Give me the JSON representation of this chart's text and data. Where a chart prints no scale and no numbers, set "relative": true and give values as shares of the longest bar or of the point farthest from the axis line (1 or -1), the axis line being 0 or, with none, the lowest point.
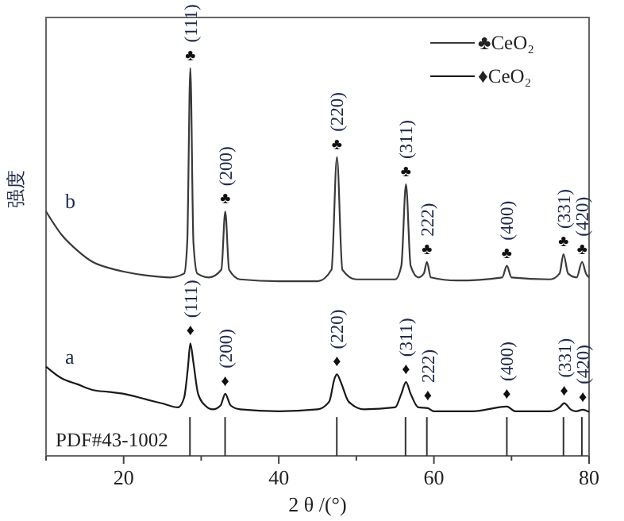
{
  "chart_data": {
    "type": "line",
    "relative": true,
    "xlabel": "2 θ /(°)",
    "ylabel": "强度",
    "xlim": [
      10,
      80
    ],
    "xticks": [
      {
        "value": 10,
        "label": null
      },
      20,
      {
        "value": 30,
        "label": null
      },
      40,
      {
        "value": 50,
        "label": null
      },
      60,
      {
        "value": 70,
        "label": null
      },
      80
    ],
    "tick_labels": "x",
    "legend": "top right",
    "grid": false,
    "marker": "none",
    "line_style": "solid",
    "series": [
      {
        "name": "♣CeO₂",
        "color": "#3a3a3a",
        "x": [
          10,
          12,
          14,
          16,
          18,
          20,
          23,
          26,
          27.8,
          28.2,
          28.6,
          29.0,
          29.5,
          31,
          32.6,
          33.1,
          33.6,
          35,
          40,
          45,
          46.8,
          47.5,
          48.2,
          50,
          55,
          55.8,
          56.4,
          57.0,
          58,
          58.7,
          59.1,
          59.6,
          63,
          68.8,
          69.4,
          70,
          75,
          76.2,
          76.7,
          77.3,
          78.4,
          79.1,
          79.6,
          80
        ],
        "values": [
          0.63,
          0.57,
          0.53,
          0.5,
          0.485,
          0.475,
          0.465,
          0.46,
          0.47,
          0.55,
          1.0,
          0.55,
          0.47,
          0.46,
          0.48,
          0.63,
          0.48,
          0.455,
          0.45,
          0.45,
          0.48,
          0.77,
          0.48,
          0.455,
          0.455,
          0.49,
          0.7,
          0.49,
          0.46,
          0.47,
          0.5,
          0.46,
          0.452,
          0.46,
          0.49,
          0.46,
          0.455,
          0.47,
          0.52,
          0.47,
          0.46,
          0.5,
          0.47,
          0.46
        ]
      },
      {
        "name": "♦CeO₂",
        "color": "#1a1a1a",
        "x": [
          10,
          12,
          14,
          16,
          18,
          20,
          23,
          25,
          27,
          27.8,
          28.3,
          28.6,
          29.0,
          29.6,
          30.5,
          31.5,
          32.5,
          33.1,
          33.8,
          35,
          40,
          45,
          46.5,
          47.2,
          47.5,
          48,
          49,
          51,
          55,
          55.8,
          56.4,
          57,
          58,
          59.2,
          60,
          65,
          69.4,
          70.5,
          75,
          76.2,
          76.8,
          77.6,
          78.3,
          79.2,
          80
        ],
        "values": [
          0.23,
          0.2,
          0.185,
          0.17,
          0.165,
          0.16,
          0.145,
          0.135,
          0.125,
          0.15,
          0.23,
          0.29,
          0.24,
          0.16,
          0.13,
          0.12,
          0.13,
          0.16,
          0.13,
          0.12,
          0.115,
          0.12,
          0.14,
          0.2,
          0.21,
          0.19,
          0.14,
          0.12,
          0.125,
          0.16,
          0.19,
          0.16,
          0.125,
          0.123,
          0.115,
          0.115,
          0.127,
          0.115,
          0.115,
          0.125,
          0.136,
          0.12,
          0.115,
          0.119,
          0.113
        ]
      },
      {
        "name": "PDF#43-1002",
        "type": "bar",
        "color": "#333333",
        "x": [
          28.55,
          33.08,
          47.48,
          56.34,
          59.09,
          69.4,
          76.7,
          79.07
        ],
        "values": [
          0.1,
          0.1,
          0.1,
          0.1,
          0.1,
          0.1,
          0.1,
          0.1
        ]
      }
    ],
    "annotations": [
      "b",
      "a",
      {
        "text": "♣",
        "x": 28.6,
        "y": 1.0
      },
      {
        "text": "(111)",
        "x": 28.6,
        "y": 1.0
      },
      {
        "text": "♣",
        "x": 33.1,
        "y": 0.63
      },
      {
        "text": "(200)",
        "x": 33.1,
        "y": 0.63
      },
      {
        "text": "♣",
        "x": 47.5,
        "y": 0.77
      },
      {
        "text": "(220)",
        "x": 47.5,
        "y": 0.77
      },
      {
        "text": "♣",
        "x": 56.4,
        "y": 0.7
      },
      {
        "text": "(311)",
        "x": 56.4,
        "y": 0.7
      },
      {
        "text": "♣",
        "x": 59.1,
        "y": 0.5
      },
      {
        "text": "222)",
        "x": 59.1,
        "y": 0.5
      },
      {
        "text": "♣",
        "x": 69.4,
        "y": 0.49
      },
      {
        "text": "(400)",
        "x": 69.4,
        "y": 0.49
      },
      {
        "text": "♣",
        "x": 76.7,
        "y": 0.52
      },
      {
        "text": "(331)",
        "x": 76.7,
        "y": 0.52
      },
      {
        "text": "♣",
        "x": 79.1,
        "y": 0.5
      },
      {
        "text": "(420)",
        "x": 79.1,
        "y": 0.5
      },
      {
        "text": "♦",
        "x": 28.6,
        "y": 0.29
      },
      {
        "text": "(111)",
        "x": 28.6,
        "y": 0.29
      },
      {
        "text": "♦",
        "x": 33.1,
        "y": 0.16
      },
      {
        "text": "(200)",
        "x": 33.1,
        "y": 0.16
      },
      {
        "text": "♦",
        "x": 47.5,
        "y": 0.21
      },
      {
        "text": "(220)",
        "x": 47.5,
        "y": 0.21
      },
      {
        "text": "♦",
        "x": 56.4,
        "y": 0.19
      },
      {
        "text": "(311)",
        "x": 56.4,
        "y": 0.19
      },
      {
        "text": "♦",
        "x": 59.2,
        "y": 0.123
      },
      {
        "text": "222)",
        "x": 59.2,
        "y": 0.123
      },
      {
        "text": "♦",
        "x": 69.4,
        "y": 0.127
      },
      {
        "text": "(400)",
        "x": 69.4,
        "y": 0.127
      },
      {
        "text": "♦",
        "x": 76.8,
        "y": 0.136
      },
      {
        "text": "(331)",
        "x": 76.8,
        "y": 0.136
      },
      {
        "text": "♦",
        "x": 79.2,
        "y": 0.119
      },
      {
        "text": "(420)",
        "x": 79.2,
        "y": 0.119
      }
    ]
  }
}
